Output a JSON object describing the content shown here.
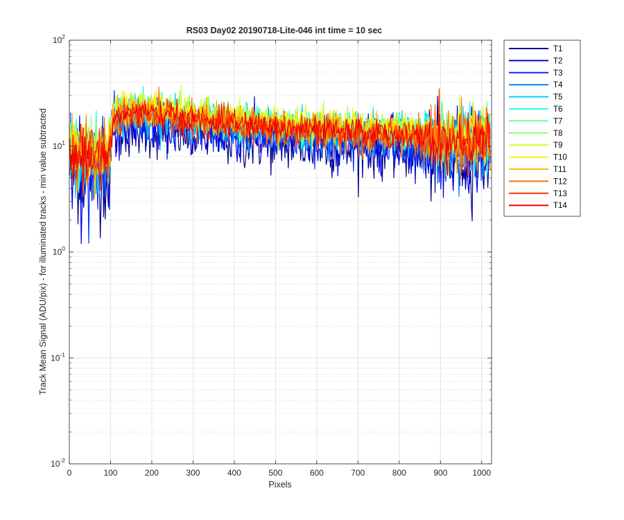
{
  "chart_data": {
    "type": "line",
    "title": "RS03 Day02 20190718-Lite-046 int time = 10 sec",
    "xlabel": "Pixels",
    "ylabel": "Track Mean Signal (ADU/pix) - for illuminated tracks - min value subtracted",
    "xlim": [
      0,
      1024
    ],
    "ylim": [
      0.01,
      100
    ],
    "yscale": "log",
    "grid": true,
    "minor_grid": true,
    "legend_position": "outside-top-right",
    "x_ticks": [
      0,
      100,
      200,
      300,
      400,
      500,
      600,
      700,
      800,
      900,
      1000
    ],
    "y_ticks": [
      {
        "base": "10",
        "exp": "-2",
        "value": 0.01
      },
      {
        "base": "10",
        "exp": "-1",
        "value": 0.1
      },
      {
        "base": "10",
        "exp": "0",
        "value": 1
      },
      {
        "base": "10",
        "exp": "1",
        "value": 10
      },
      {
        "base": "10",
        "exp": "2",
        "value": 100
      }
    ],
    "series_profile": {
      "x": [
        0,
        20,
        50,
        80,
        95,
        100,
        105,
        150,
        200,
        250,
        300,
        400,
        500,
        600,
        700,
        800,
        850,
        900,
        950,
        1000,
        1022
      ],
      "description_values": [
        9,
        8,
        8,
        8,
        8,
        10,
        18,
        21,
        20,
        19,
        18,
        16,
        15,
        14,
        13.5,
        13,
        12,
        11,
        11,
        11.5,
        11.5
      ]
    },
    "series": [
      {
        "name": "T1",
        "color": "#00008F",
        "offset": 0.7,
        "noise": 0.3
      },
      {
        "name": "T2",
        "color": "#0000DF",
        "offset": 0.78,
        "noise": 0.27
      },
      {
        "name": "T3",
        "color": "#0030FF",
        "offset": 0.86,
        "noise": 0.24
      },
      {
        "name": "T4",
        "color": "#0080FF",
        "offset": 0.92,
        "noise": 0.22
      },
      {
        "name": "T5",
        "color": "#00CFFF",
        "offset": 1.0,
        "noise": 0.2
      },
      {
        "name": "T6",
        "color": "#20FFDF",
        "offset": 1.05,
        "noise": 0.18
      },
      {
        "name": "T7",
        "color": "#70FF8F",
        "offset": 1.12,
        "noise": 0.16
      },
      {
        "name": "T8",
        "color": "#8FFF70",
        "offset": 1.15,
        "noise": 0.16
      },
      {
        "name": "T9",
        "color": "#CFFF30",
        "offset": 1.18,
        "noise": 0.15
      },
      {
        "name": "T10",
        "color": "#FFEF00",
        "offset": 1.12,
        "noise": 0.16
      },
      {
        "name": "T11",
        "color": "#FFBF00",
        "offset": 1.05,
        "noise": 0.18
      },
      {
        "name": "T12",
        "color": "#FF7000",
        "offset": 0.95,
        "noise": 0.2
      },
      {
        "name": "T13",
        "color": "#FF3000",
        "offset": 0.98,
        "noise": 0.17
      },
      {
        "name": "T14",
        "color": "#EF0000",
        "offset": 1.0,
        "noise": 0.15
      }
    ]
  }
}
